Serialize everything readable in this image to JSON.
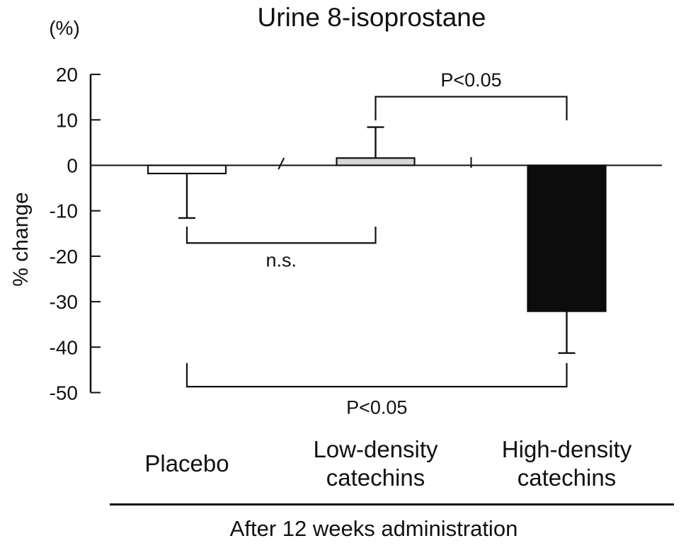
{
  "page": {
    "background": "#ffffff"
  },
  "chart_data": {
    "type": "bar",
    "title": "Urine 8-isoprostane",
    "y_axis_unit": "(%)",
    "ylabel": "% change",
    "xlabel": "After 12 weeks administration",
    "ylim": [
      -50,
      20
    ],
    "yticks": [
      20,
      10,
      0,
      -10,
      -20,
      -30,
      -40,
      -50
    ],
    "grid": false,
    "legend": null,
    "categories": [
      {
        "lines": [
          "Placebo"
        ]
      },
      {
        "lines": [
          "Low-density",
          "catechins"
        ]
      },
      {
        "lines": [
          "High-density",
          "catechins"
        ]
      }
    ],
    "series": [
      {
        "name": "% change",
        "values": [
          -1.8,
          1.6,
          -32.1
        ],
        "errors": [
          9.8,
          6.8,
          9.2
        ]
      }
    ],
    "bar_styles": [
      {
        "fill": "#ffffff",
        "stroke": "#111111"
      },
      {
        "fill": "#d6d6d6",
        "stroke": "#111111"
      },
      {
        "fill": "#0c0c0c",
        "stroke": "#0c0c0c"
      }
    ],
    "divider_ticks_between_categories": true,
    "axis_color": "#111111",
    "annotations": [
      {
        "label": "n.s.",
        "from": 0,
        "to": 1,
        "bar_value": -17.1,
        "tip_value": -13.5,
        "label_value": -20.9,
        "side": "below"
      },
      {
        "label": "P<0.05",
        "from": 1,
        "to": 2,
        "bar_value": 15.1,
        "tip_value": 9.9,
        "label_value": 18.8,
        "side": "above"
      },
      {
        "label": "P<0.05",
        "from": 0,
        "to": 2,
        "bar_value": -48.7,
        "tip_value": -43.5,
        "label_value": -53.3,
        "side": "below"
      }
    ]
  }
}
